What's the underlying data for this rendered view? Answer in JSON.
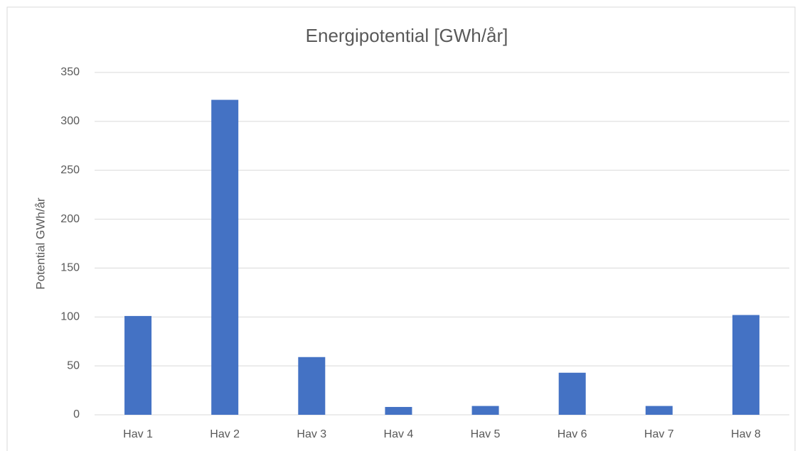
{
  "chart_data": {
    "type": "bar",
    "title": "Energipotential [GWh/år]",
    "y_label": "Potential GWh/år",
    "categories": [
      "Hav 1",
      "Hav 2",
      "Hav 3",
      "Hav 4",
      "Hav 5",
      "Hav 6",
      "Hav 7",
      "Hav 8"
    ],
    "values": [
      101,
      322,
      59,
      8,
      9,
      43,
      9,
      102
    ],
    "color": "#4472c4",
    "ylim": [
      0,
      350
    ],
    "yticks": [
      0,
      50,
      100,
      150,
      200,
      250,
      300,
      350
    ],
    "grid": true
  }
}
